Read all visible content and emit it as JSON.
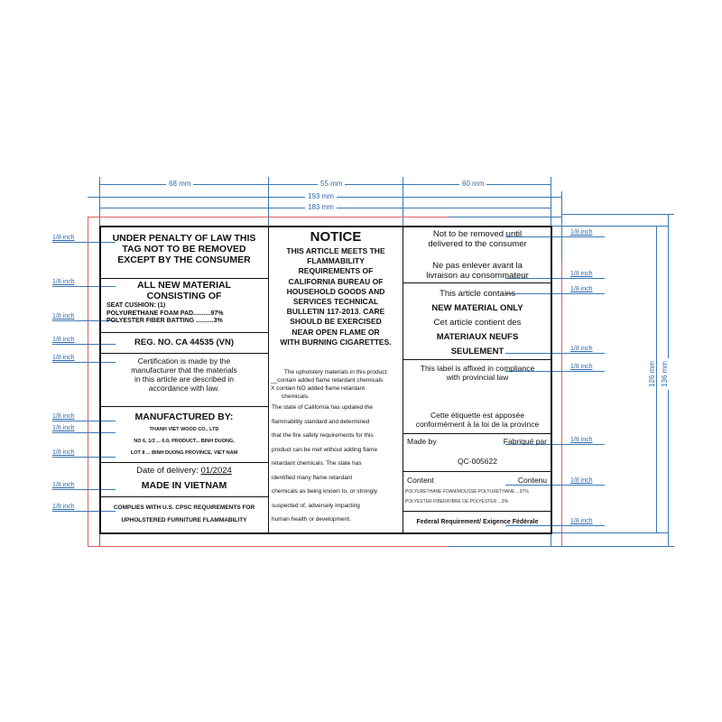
{
  "dimensions": {
    "col1": "68 mm",
    "col2": "55 mm",
    "col3": "60 mm",
    "total_outer": "193 mm",
    "total_inner": "183 mm",
    "height_inner": "126 mm",
    "height_outer": "136 mm",
    "eighth_inch": "1/8 inch"
  },
  "left": {
    "penalty": [
      "UNDER PENALTY OF LAW THIS",
      "TAG NOT TO BE REMOVED",
      "EXCEPT BY THE CONSUMER"
    ],
    "material_title": [
      "ALL NEW MATERIAL",
      "CONSISTING OF"
    ],
    "seat": "SEAT CUSHION: (1)",
    "foam": "POLYURETHANE FOAM PAD..........97%",
    "fiber": "POLYESTER FIBER BATTING ..........3%",
    "reg": "REG. NO. CA 44535 (VN)",
    "cert": [
      "Certification is made by the",
      "manufacturer that the materials",
      "in this article are described in",
      "accordance with law."
    ],
    "mfd_title": "MANUFACTURED BY:",
    "mfd_lines": [
      "THANH VIET WOOD CO., LTD",
      "NO 6, 1/2 ... 6.0, PRODUCT... BINH DUONG,",
      "LOT 8 ... BINH DUONG PROVINCE, VIET NAM"
    ],
    "date_label": "Date of delivery:",
    "date_value": "01/2024",
    "made_in": "MADE IN VIETNAM",
    "complies": [
      "COMPLIES WITH U.S. CPSC  REQUIREMENTS FOR",
      "UPHOLSTERED  FURNITURE FLAMMABILITY"
    ]
  },
  "middle": {
    "title": "NOTICE",
    "notice": [
      "THIS ARTICLE MEETS THE",
      "FLAMMABILITY",
      "REQUIREMENTS OF",
      "CALIFORNIA BUREAU OF",
      "HOUSEHOLD GOODS AND",
      "SERVICES TECHNICAL",
      "BULLETIN 117-2013. CARE",
      "SHOULD BE EXERCISED",
      "NEAR OPEN FLAME OR",
      "WITH BURNING CIGARETTES."
    ],
    "upholstery": "The upholstery materials in this product:",
    "option1": "__contain added flame retardant chemicals",
    "option2": "X  contain NO added flame retardant",
    "option2b": "chemicals.",
    "state": [
      "The state of California has updated the",
      "flammability standard and determined",
      "that the fire safety requirements for this",
      "product can be met without adding flame",
      "retardant chemicals. The state has",
      "identified many flame retardant",
      "chemicals as being known to, or strongly",
      "suspected of, adversely impacting",
      "human health or development."
    ]
  },
  "right": {
    "not_removed": [
      "Not to be removed until",
      "delivered to the consumer"
    ],
    "ne_pas": [
      "Ne pas enlever avant la",
      "livraison au consommateur"
    ],
    "contains": "This article contains",
    "new_only": "NEW MATERIAL ONLY",
    "contient": "Cet article contient des",
    "neufs": "MATERIAUX NEUFS",
    "seulement": "SEULEMENT",
    "affixed": [
      "This label is affixed in compliance",
      "with provincial law"
    ],
    "apposee": [
      "Cette étiquette est apposée",
      "conformément à la loi de la province"
    ],
    "made_by": "Made by",
    "fabrique": "Fabriqué par",
    "code": "QC-005622",
    "content": "Content",
    "contenu": "Contenu",
    "content_lines": [
      "POLYURETHANE FOAM/MOUSSE POLYURETHANE ...97%",
      "POLYESTER FIBER/FIBRE DE POLYESTER ...3%"
    ],
    "federal": "Federal Requirement/ Exigence Fédérale"
  },
  "colors": {
    "dimension": "#3a78b5",
    "bleed": "#e06060",
    "border": "#111111"
  }
}
